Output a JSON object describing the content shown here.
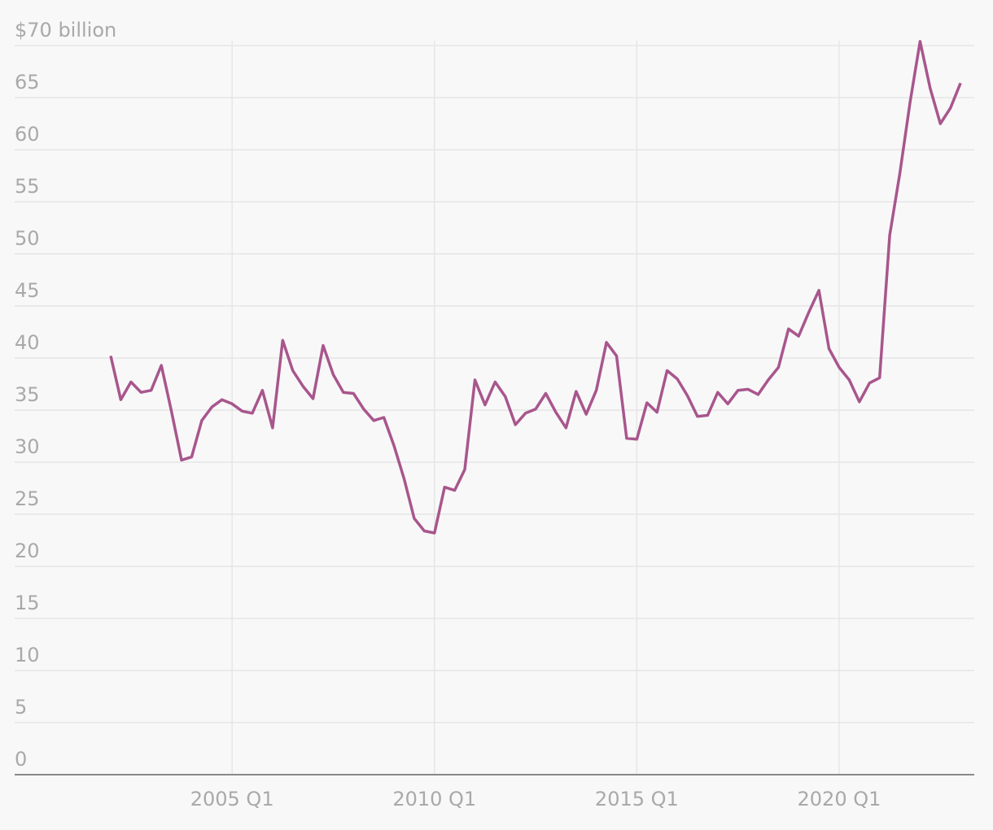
{
  "chart_data": {
    "type": "line",
    "categories": [
      "2002 Q1",
      "2002 Q2",
      "2002 Q3",
      "2002 Q4",
      "2003 Q1",
      "2003 Q2",
      "2003 Q3",
      "2003 Q4",
      "2004 Q1",
      "2004 Q2",
      "2004 Q3",
      "2004 Q4",
      "2005 Q1",
      "2005 Q2",
      "2005 Q3",
      "2005 Q4",
      "2006 Q1",
      "2006 Q2",
      "2006 Q3",
      "2006 Q4",
      "2007 Q1",
      "2007 Q2",
      "2007 Q3",
      "2007 Q4",
      "2008 Q1",
      "2008 Q2",
      "2008 Q3",
      "2008 Q4",
      "2009 Q1",
      "2009 Q2",
      "2009 Q3",
      "2009 Q4",
      "2010 Q1",
      "2010 Q2",
      "2010 Q3",
      "2010 Q4",
      "2011 Q1",
      "2011 Q2",
      "2011 Q3",
      "2011 Q4",
      "2012 Q1",
      "2012 Q2",
      "2012 Q3",
      "2012 Q4",
      "2013 Q1",
      "2013 Q2",
      "2013 Q3",
      "2013 Q4",
      "2014 Q1",
      "2014 Q2",
      "2014 Q3",
      "2014 Q4",
      "2015 Q1",
      "2015 Q2",
      "2015 Q3",
      "2015 Q4",
      "2016 Q1",
      "2016 Q2",
      "2016 Q3",
      "2016 Q4",
      "2017 Q1",
      "2017 Q2",
      "2017 Q3",
      "2017 Q4",
      "2018 Q1",
      "2018 Q2",
      "2018 Q3",
      "2018 Q4",
      "2019 Q1",
      "2019 Q2",
      "2019 Q3",
      "2019 Q4",
      "2020 Q1",
      "2020 Q2",
      "2020 Q3",
      "2020 Q4",
      "2021 Q1",
      "2021 Q2",
      "2021 Q3",
      "2021 Q4",
      "2022 Q1",
      "2022 Q2",
      "2022 Q3",
      "2022 Q4",
      "2023 Q1"
    ],
    "values": [
      40.2,
      36.0,
      37.7,
      36.7,
      36.9,
      39.3,
      34.9,
      30.2,
      30.5,
      34.0,
      35.3,
      36.0,
      35.6,
      34.9,
      34.7,
      36.9,
      33.3,
      41.7,
      38.8,
      37.3,
      36.1,
      41.2,
      38.4,
      36.7,
      36.6,
      35.1,
      34.0,
      34.3,
      31.6,
      28.4,
      24.6,
      23.4,
      23.2,
      27.6,
      27.3,
      29.3,
      37.9,
      35.5,
      37.7,
      36.3,
      33.6,
      34.7,
      35.1,
      36.6,
      34.8,
      33.3,
      36.8,
      34.6,
      36.9,
      41.5,
      40.2,
      32.3,
      32.2,
      35.7,
      34.8,
      38.8,
      38.0,
      36.4,
      34.4,
      34.5,
      36.7,
      35.6,
      36.9,
      37.0,
      36.5,
      37.9,
      39.1,
      42.8,
      42.1,
      44.4,
      46.5,
      40.9,
      39.1,
      37.9,
      35.8,
      37.6,
      38.1,
      51.8,
      57.7,
      64.5,
      70.4,
      65.9,
      62.5,
      64.0,
      66.4
    ],
    "color": "#a8568d",
    "xticks": [
      "2005 Q1",
      "2010 Q1",
      "2015 Q1",
      "2020 Q1"
    ],
    "ylim": [
      0,
      70
    ],
    "yticks": [
      0,
      5,
      10,
      15,
      20,
      25,
      30,
      35,
      40,
      45,
      50,
      55,
      60,
      65,
      {
        "value": 70,
        "label": "$70 billion"
      }
    ],
    "grid": true
  }
}
